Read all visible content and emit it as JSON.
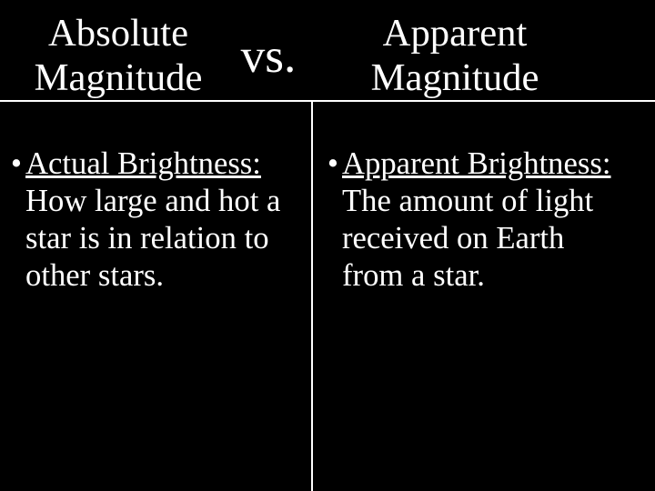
{
  "colors": {
    "background": "#000000",
    "text": "#ffffff",
    "rule": "#ffffff"
  },
  "fonts": {
    "family": "Times New Roman",
    "title_size_pt": 32,
    "vs_size_pt": 40,
    "body_size_pt": 26,
    "title_weight": "400",
    "body_weight": "400",
    "line_height_body": 1.18,
    "line_height_title": 1.15
  },
  "header": {
    "left_line1": "Absolute",
    "left_line2": "Magnitude",
    "vs": "vs.",
    "right_line1": "Apparent",
    "right_line2": "Magnitude"
  },
  "left_bullet": {
    "mark": "•",
    "lead": "Actual Brightness:",
    "rest": " How large and hot a star is in relation to other stars."
  },
  "right_bullet": {
    "mark": "•",
    "lead": "Apparent Brightness:",
    "rest": " The amount of light received on Earth from a star."
  }
}
